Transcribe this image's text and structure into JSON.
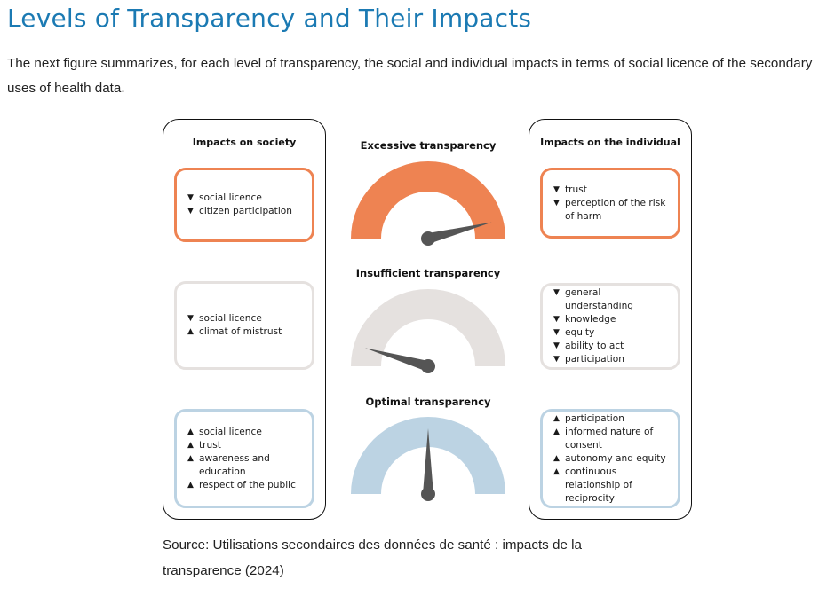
{
  "page": {
    "title": "Levels of Transparency and Their Impacts",
    "intro": "The next figure summarizes, for each level of transparency, the social and individual impacts in terms of social licence of the secondary uses of health data.",
    "source": "Source: Utilisations secondaires des données de santé : impacts de la transparence (2024)"
  },
  "colors": {
    "title": "#1b7ab3",
    "excessive": "#ee8352",
    "insufficient": "#e5e1df",
    "optimal": "#bcd3e3",
    "needle": "#555555"
  },
  "figure": {
    "society_heading": "Impacts  on society",
    "individual_heading": "Impacts  on the individual",
    "levels": [
      {
        "id": "excessive",
        "label": "Excessive transparency",
        "color": "#ee8352",
        "needle_level": 0.92,
        "society": [
          {
            "dir": "down",
            "text": "social licence"
          },
          {
            "dir": "down",
            "text": "citizen participation"
          }
        ],
        "individual": [
          {
            "dir": "down",
            "text": "trust"
          },
          {
            "dir": "down",
            "text": "perception of the risk of harm"
          }
        ]
      },
      {
        "id": "insufficient",
        "label": "Insufficient transparency",
        "color": "#e5e1df",
        "needle_level": 0.09,
        "society": [
          {
            "dir": "down",
            "text": "social licence"
          },
          {
            "dir": "up",
            "text": "climat of mistrust"
          }
        ],
        "individual": [
          {
            "dir": "down",
            "text": "general understanding"
          },
          {
            "dir": "down",
            "text": "knowledge"
          },
          {
            "dir": "down",
            "text": "equity"
          },
          {
            "dir": "down",
            "text": "ability to act"
          },
          {
            "dir": "down",
            "text": "participation"
          }
        ]
      },
      {
        "id": "optimal",
        "label": "Optimal transparency",
        "color": "#bcd3e3",
        "needle_level": 0.5,
        "society": [
          {
            "dir": "up",
            "text": "social licence"
          },
          {
            "dir": "up",
            "text": "trust"
          },
          {
            "dir": "up",
            "text": "awareness and education"
          },
          {
            "dir": "up",
            "text": "respect of the public"
          }
        ],
        "individual": [
          {
            "dir": "up",
            "text": "participation"
          },
          {
            "dir": "up",
            "text": "informed nature of consent"
          },
          {
            "dir": "up",
            "text": "autonomy and equity"
          },
          {
            "dir": "up",
            "text": "continuous relationship of reciprocity"
          }
        ]
      }
    ]
  }
}
